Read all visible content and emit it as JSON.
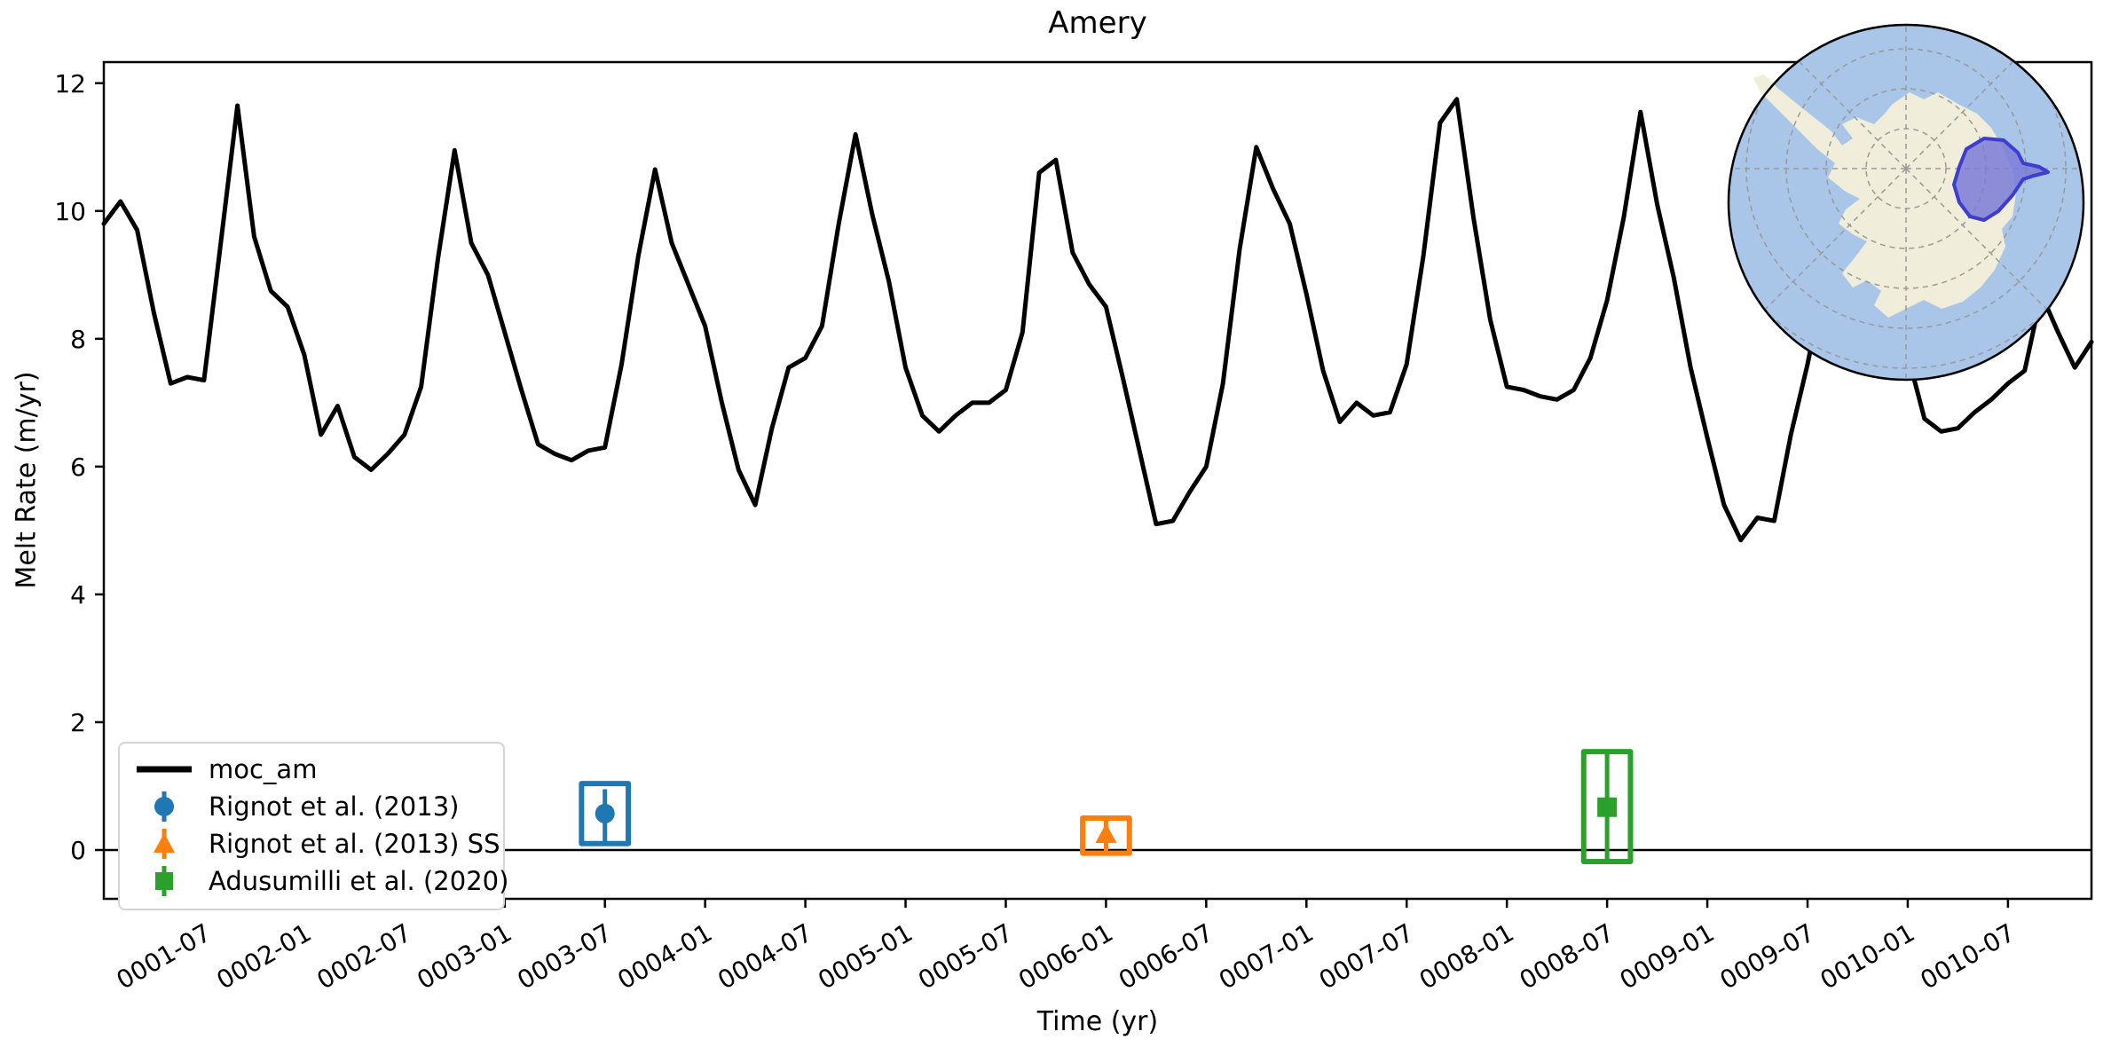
{
  "title": "Amery",
  "axes": {
    "xlabel": "Time (yr)",
    "ylabel": "Melt Rate (m/yr)",
    "yticks": [
      0,
      2,
      4,
      6,
      8,
      10,
      12
    ],
    "xticks": [
      {
        "m": 6,
        "label": "0001-07"
      },
      {
        "m": 12,
        "label": "0002-01"
      },
      {
        "m": 18,
        "label": "0002-07"
      },
      {
        "m": 24,
        "label": "0003-01"
      },
      {
        "m": 30,
        "label": "0003-07"
      },
      {
        "m": 36,
        "label": "0004-01"
      },
      {
        "m": 42,
        "label": "0004-07"
      },
      {
        "m": 48,
        "label": "0005-01"
      },
      {
        "m": 54,
        "label": "0005-07"
      },
      {
        "m": 60,
        "label": "0006-01"
      },
      {
        "m": 66,
        "label": "0006-07"
      },
      {
        "m": 72,
        "label": "0007-01"
      },
      {
        "m": 78,
        "label": "0007-07"
      },
      {
        "m": 84,
        "label": "0008-01"
      },
      {
        "m": 90,
        "label": "0008-07"
      },
      {
        "m": 96,
        "label": "0009-01"
      },
      {
        "m": 102,
        "label": "0009-07"
      },
      {
        "m": 108,
        "label": "0010-01"
      },
      {
        "m": 114,
        "label": "0010-07"
      }
    ],
    "ylim": [
      -0.764,
      12.33
    ],
    "xlim_months": [
      0,
      119
    ]
  },
  "chart_data": {
    "type": "line",
    "x_start": "0001-01",
    "x_step_months": 1,
    "series": [
      {
        "name": "moc_am",
        "color": "#000000",
        "values": [
          9.8,
          10.15,
          9.7,
          8.4,
          7.3,
          7.4,
          7.35,
          9.5,
          11.65,
          9.6,
          8.75,
          8.5,
          7.75,
          6.5,
          6.95,
          6.15,
          5.95,
          6.2,
          6.5,
          7.25,
          9.25,
          10.95,
          9.5,
          9.0,
          8.1,
          7.2,
          6.35,
          6.2,
          6.1,
          6.25,
          6.3,
          7.6,
          9.3,
          10.65,
          9.5,
          8.85,
          8.2,
          7.0,
          5.95,
          5.4,
          6.6,
          7.55,
          7.7,
          8.2,
          9.8,
          11.2,
          9.95,
          8.9,
          7.55,
          6.8,
          6.55,
          6.8,
          7.0,
          7.0,
          7.2,
          8.1,
          10.6,
          10.8,
          9.35,
          8.85,
          8.5,
          7.4,
          6.25,
          5.1,
          5.15,
          5.6,
          6.0,
          7.3,
          9.4,
          11.0,
          10.35,
          9.8,
          8.7,
          7.5,
          6.7,
          7.0,
          6.8,
          6.85,
          7.6,
          9.3,
          11.38,
          11.75,
          9.9,
          8.3,
          7.25,
          7.2,
          7.1,
          7.05,
          7.2,
          7.7,
          8.6,
          9.9,
          11.55,
          10.1,
          8.95,
          7.55,
          6.45,
          5.4,
          4.85,
          5.2,
          5.15,
          6.5,
          7.6,
          8.9,
          10.5,
          9.8,
          9.0,
          8.3,
          7.75,
          6.75,
          6.55,
          6.6,
          6.85,
          7.05,
          7.3,
          7.5,
          8.7,
          8.1,
          7.55,
          7.95
        ]
      }
    ],
    "observations": [
      {
        "label": "Rignot et al. (2013)",
        "color": "#1f77b4",
        "marker": "circle",
        "month": 30,
        "date": "0003-07",
        "value": 0.57,
        "err_lo": 0.1,
        "err_hi": 0.95,
        "box_lo": 0.1,
        "box_hi": 1.04,
        "box_halfwidth_months": 1.4
      },
      {
        "label": "Rignot et al. (2013) SS",
        "color": "#ff7f0e",
        "marker": "triangle",
        "month": 60,
        "date": "0006-01",
        "value": 0.25,
        "err_lo": -0.05,
        "err_hi": 0.5,
        "box_lo": -0.05,
        "box_hi": 0.5,
        "box_halfwidth_months": 1.4
      },
      {
        "label": "Adusumilli et al. (2020)",
        "color": "#2ca02c",
        "marker": "square",
        "month": 90,
        "date": "0008-07",
        "value": 0.67,
        "err_lo": -0.18,
        "err_hi": 1.54,
        "box_lo": -0.18,
        "box_hi": 1.54,
        "box_halfwidth_months": 1.4
      }
    ],
    "zero_line": 0,
    "grid": false,
    "legend_position": "lower-left"
  },
  "legend": {
    "items": [
      {
        "label": "moc_am",
        "sample": "line",
        "color": "#000000"
      },
      {
        "label": "Rignot et al. (2013)",
        "sample": "circle-errorbar",
        "color": "#1f77b4"
      },
      {
        "label": "Rignot et al. (2013) SS",
        "sample": "triangle-errorbar",
        "color": "#ff7f0e"
      },
      {
        "label": "Adusumilli et al. (2020)",
        "sample": "square-errorbar",
        "color": "#2ca02c"
      }
    ]
  },
  "inset_map": {
    "description": "antarctica-locator-globe",
    "ocean_color": "#a9c6e8",
    "land_color": "#f0eeda",
    "basin_fill": "#7b7bd6",
    "basin_edge": "#3d3dcf",
    "graticule_color": "#999999",
    "border_color": "#000000"
  }
}
